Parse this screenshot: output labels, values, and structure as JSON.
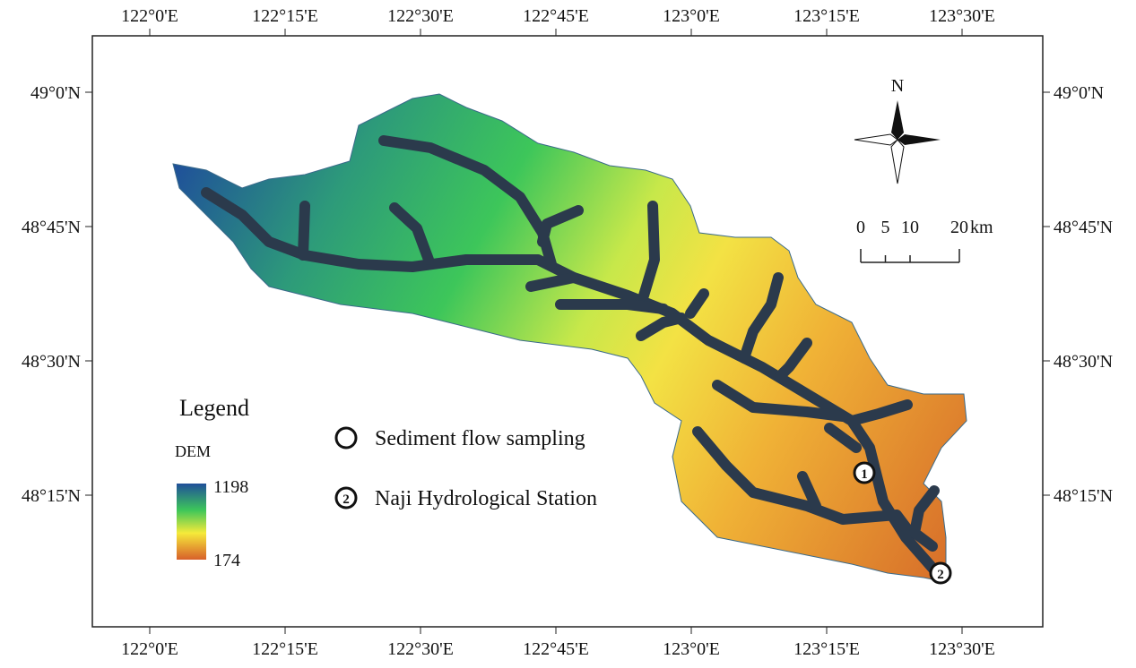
{
  "map": {
    "longitudes": [
      "122°0'E",
      "122°15'E",
      "122°30'E",
      "122°45'E",
      "123°0'E",
      "123°15'E",
      "123°30'E"
    ],
    "latitudes": [
      "49°0'N",
      "48°45'N",
      "48°30'N",
      "48°15'N"
    ],
    "north": "N",
    "scale": {
      "ticks": [
        0,
        5,
        10,
        20
      ],
      "unit": "km"
    },
    "legend": {
      "title": "Legend",
      "layer": "DEM",
      "max": 1198,
      "min": 174
    },
    "sites": [
      {
        "marker": "1",
        "label": "Sediment flow sampling"
      },
      {
        "marker": "2",
        "label": "Naji Hydrological Station"
      }
    ]
  }
}
